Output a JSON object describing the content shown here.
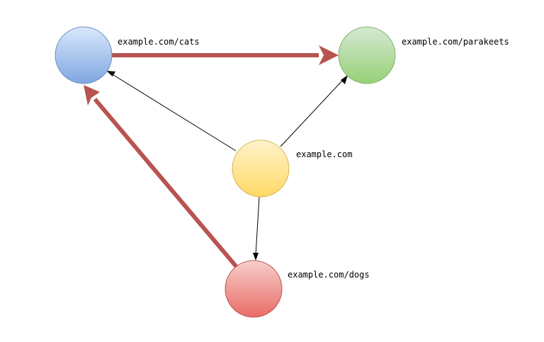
{
  "nodes": {
    "cats": {
      "label": "example.com/cats",
      "color": "#7EA6E0"
    },
    "parakeets": {
      "label": "example.com/parakeets",
      "color": "#97D077"
    },
    "root": {
      "label": "example.com",
      "color": "#FFD966"
    },
    "dogs": {
      "label": "example.com/dogs",
      "color": "#EA6B66"
    }
  },
  "edges": [
    {
      "from": "root",
      "to": "cats",
      "style": "thin"
    },
    {
      "from": "root",
      "to": "parakeets",
      "style": "thin"
    },
    {
      "from": "root",
      "to": "dogs",
      "style": "thin"
    },
    {
      "from": "cats",
      "to": "parakeets",
      "style": "thick"
    },
    {
      "from": "dogs",
      "to": "cats",
      "style": "thick"
    }
  ],
  "colors": {
    "thin_edge": "#000000",
    "thick_edge": "#B85450"
  }
}
